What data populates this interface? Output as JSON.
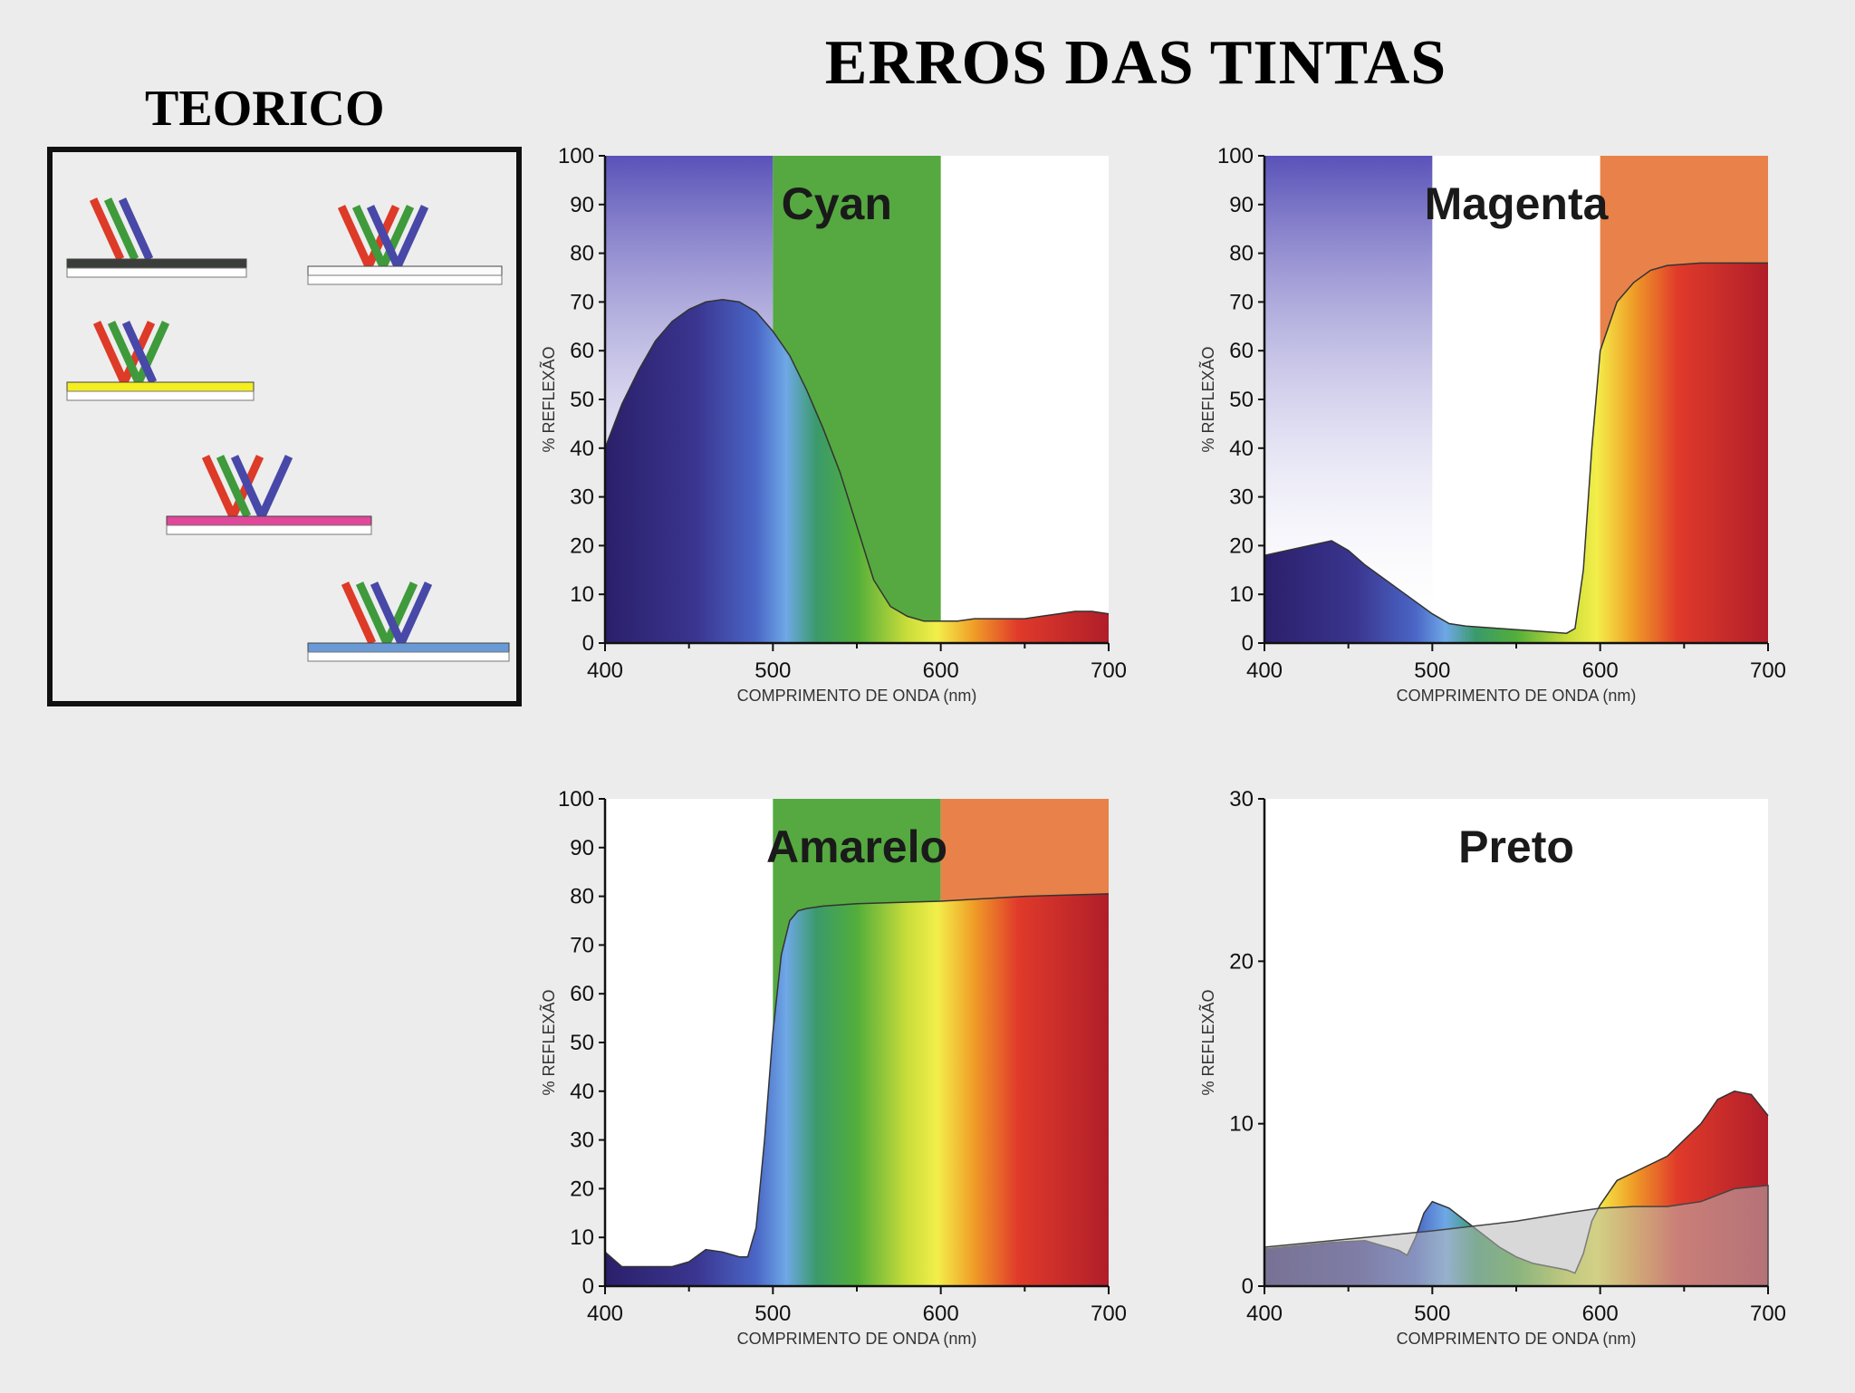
{
  "title": "ERROS DAS TINTAS",
  "theory": {
    "title": "TEORICO",
    "colors": {
      "black": "#3a3d3a",
      "white": "#fafafa",
      "yellow": "#f4ee22",
      "magenta": "#e0489a",
      "cyan": "#6a9ad6",
      "red": "#dd3a28",
      "green": "#3f9a3c",
      "blue": "#4848a8"
    }
  },
  "chart_data": [
    {
      "type": "area",
      "title": "Cyan",
      "xlabel": "COMPRIMENTO DE ONDA (nm)",
      "ylabel": "% REFLEXÃO",
      "xlim": [
        400,
        700
      ],
      "ylim": [
        0,
        100
      ],
      "xticks": [
        400,
        500,
        600,
        700
      ],
      "yticks": [
        0,
        10,
        20,
        30,
        40,
        50,
        60,
        70,
        80,
        90,
        100
      ],
      "x": [
        400,
        410,
        420,
        430,
        440,
        450,
        460,
        470,
        480,
        490,
        500,
        510,
        520,
        530,
        540,
        550,
        560,
        570,
        580,
        590,
        600,
        610,
        620,
        630,
        640,
        650,
        660,
        670,
        680,
        690,
        700
      ],
      "values": [
        40,
        49,
        56,
        62,
        66,
        68.5,
        70,
        70.5,
        70,
        68,
        64,
        59,
        52,
        44,
        35,
        24,
        13,
        7.5,
        5.5,
        4.5,
        4.5,
        4.5,
        5,
        5,
        5,
        5,
        5.5,
        6,
        6.5,
        6.5,
        6
      ],
      "bands": [
        {
          "from": 400,
          "to": 500,
          "color": "#5a52b8",
          "fade": true
        },
        {
          "from": 500,
          "to": 600,
          "color": "#55a940",
          "fade": false
        }
      ]
    },
    {
      "type": "area",
      "title": "Magenta",
      "xlabel": "COMPRIMENTO DE ONDA (nm)",
      "ylabel": "% REFLEXÃO",
      "xlim": [
        400,
        700
      ],
      "ylim": [
        0,
        100
      ],
      "xticks": [
        400,
        500,
        600,
        700
      ],
      "yticks": [
        0,
        10,
        20,
        30,
        40,
        50,
        60,
        70,
        80,
        90,
        100
      ],
      "x": [
        400,
        420,
        440,
        450,
        460,
        480,
        500,
        510,
        520,
        540,
        560,
        580,
        585,
        590,
        595,
        600,
        610,
        620,
        630,
        640,
        660,
        680,
        700
      ],
      "values": [
        18,
        19.5,
        21,
        19,
        16,
        11,
        6,
        4,
        3.5,
        3,
        2.5,
        2,
        3,
        15,
        40,
        60,
        70,
        74,
        76.5,
        77.5,
        78,
        78,
        78
      ],
      "bands": [
        {
          "from": 400,
          "to": 500,
          "color": "#5a52b8",
          "fade": true
        },
        {
          "from": 600,
          "to": 700,
          "color": "#e8824a",
          "fade": false
        }
      ]
    },
    {
      "type": "area",
      "title": "Amarelo",
      "xlabel": "COMPRIMENTO DE ONDA (nm)",
      "ylabel": "% REFLEXÃO",
      "xlim": [
        400,
        700
      ],
      "ylim": [
        0,
        100
      ],
      "xticks": [
        400,
        500,
        600,
        700
      ],
      "yticks": [
        0,
        10,
        20,
        30,
        40,
        50,
        60,
        70,
        80,
        90,
        100
      ],
      "x": [
        400,
        410,
        420,
        440,
        450,
        460,
        470,
        480,
        485,
        490,
        495,
        500,
        505,
        510,
        515,
        520,
        530,
        550,
        600,
        650,
        700
      ],
      "values": [
        7,
        4,
        4,
        4,
        5,
        7.5,
        7,
        6,
        6,
        12,
        30,
        52,
        68,
        75,
        77,
        77.5,
        78,
        78.5,
        79,
        80,
        80.5
      ],
      "bands": [
        {
          "from": 500,
          "to": 600,
          "color": "#55a940",
          "fade": false
        },
        {
          "from": 600,
          "to": 700,
          "color": "#e8824a",
          "fade": false
        }
      ]
    },
    {
      "type": "area",
      "title": "Preto",
      "xlabel": "COMPRIMENTO DE ONDA (nm)",
      "ylabel": "% REFLEXÃO",
      "xlim": [
        400,
        700
      ],
      "ylim": [
        0,
        30
      ],
      "xticks": [
        400,
        500,
        600,
        700
      ],
      "yticks": [
        0,
        10,
        20,
        30
      ],
      "x": [
        400,
        420,
        440,
        460,
        470,
        480,
        485,
        490,
        495,
        500,
        510,
        520,
        530,
        540,
        550,
        560,
        570,
        580,
        585,
        590,
        595,
        600,
        610,
        620,
        640,
        660,
        670,
        680,
        690,
        700
      ],
      "values": [
        2.3,
        2.5,
        2.7,
        2.8,
        2.5,
        2.2,
        1.9,
        3,
        4.5,
        5.2,
        4.8,
        4,
        3.2,
        2.4,
        1.8,
        1.4,
        1.2,
        1,
        0.8,
        2,
        4,
        5,
        6.5,
        7,
        8,
        10,
        11.5,
        12,
        11.8,
        10.5
      ],
      "series": [
        {
          "name": "",
          "x": [
            400,
            450,
            500,
            550,
            580,
            600,
            620,
            640,
            660,
            680,
            700
          ],
          "values": [
            2.4,
            2.9,
            3.4,
            4,
            4.5,
            4.8,
            4.9,
            4.9,
            5.2,
            6,
            6.2
          ]
        }
      ],
      "bands": []
    }
  ]
}
